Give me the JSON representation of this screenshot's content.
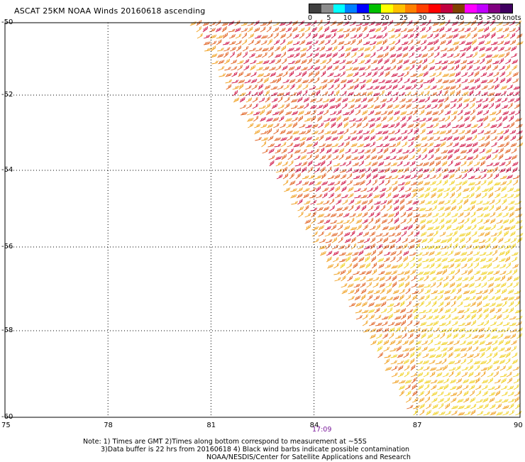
{
  "title": "ASCAT 25KM NOAA Winds 20160618 ascending",
  "colorbar": {
    "colors": [
      "#404040",
      "#8c8c8c",
      "#00ffff",
      "#0080ff",
      "#0000ff",
      "#00c000",
      "#ffff00",
      "#ffc000",
      "#ff8000",
      "#ff4000",
      "#ff0000",
      "#c00040",
      "#804000",
      "#ff00ff",
      "#c000ff",
      "#800080",
      "#400060"
    ],
    "labels": [
      "0",
      "5",
      "10",
      "15",
      "20",
      "25",
      "30",
      "35",
      "40",
      "45",
      ">50 knots"
    ]
  },
  "axes": {
    "x_ticks": [
      "75",
      "78",
      "81",
      "84",
      "87",
      "90"
    ],
    "y_ticks": [
      "-50",
      "-52",
      "-54",
      "-56",
      "-58",
      "-60"
    ]
  },
  "time_label": "17:09",
  "notes": {
    "line1": "Note: 1) Times are GMT 2)Times along bottom correspond to measurement at ~55S",
    "line2": "3)Data buffer is 22 hrs from 20160618 4) Black wind barbs indicate possible contamination",
    "line3": "NOAA/NESDIS/Center for Satellite Applications and Research"
  },
  "swath": {
    "edge_top_lon": 80.3,
    "edge_bottom_lon": 86.8,
    "barb_colors": {
      "high": "#d01848",
      "mid": "#e06020",
      "low": "#f0a020",
      "light": "#f0d020"
    }
  }
}
